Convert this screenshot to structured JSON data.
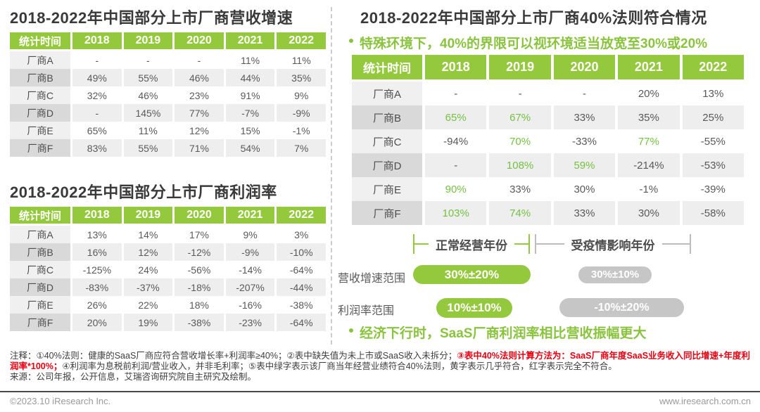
{
  "colors": {
    "brand_green": "#94c83d",
    "green_value_text": "#76c043",
    "gray_pill": "#c6c6c6",
    "red_note": "#e60012"
  },
  "chart_data": [
    {
      "type": "table",
      "title": "2018-2022年中国部分上市厂商营收增速",
      "columns": [
        "统计时间",
        "2018",
        "2019",
        "2020",
        "2021",
        "2022"
      ],
      "rows": [
        [
          "厂商A",
          "-",
          "-",
          "-",
          "11%",
          "11%"
        ],
        [
          "厂商B",
          "49%",
          "55%",
          "46%",
          "44%",
          "35%"
        ],
        [
          "厂商C",
          "32%",
          "46%",
          "23%",
          "91%",
          "9%"
        ],
        [
          "厂商D",
          "-",
          "145%",
          "77%",
          "-7%",
          "-9%"
        ],
        [
          "厂商E",
          "65%",
          "11%",
          "12%",
          "15%",
          "-1%"
        ],
        [
          "厂商F",
          "83%",
          "55%",
          "71%",
          "54%",
          "7%"
        ]
      ]
    },
    {
      "type": "table",
      "title": "2018-2022年中国部分上市厂商利润率",
      "columns": [
        "统计时间",
        "2018",
        "2019",
        "2020",
        "2021",
        "2022"
      ],
      "rows": [
        [
          "厂商A",
          "13%",
          "14%",
          "17%",
          "9%",
          "3%"
        ],
        [
          "厂商B",
          "16%",
          "12%",
          "-12%",
          "-9%",
          "-10%"
        ],
        [
          "厂商C",
          "-125%",
          "24%",
          "-56%",
          "-14%",
          "-64%"
        ],
        [
          "厂商D",
          "-83%",
          "-37%",
          "-18%",
          "-207%",
          "-44%"
        ],
        [
          "厂商E",
          "26%",
          "22%",
          "18%",
          "-16%",
          "-38%"
        ],
        [
          "厂商F",
          "20%",
          "19%",
          "-38%",
          "-23%",
          "-64%"
        ]
      ]
    },
    {
      "type": "table",
      "title": "2018-2022年中国部分上市厂商40%法则符合情况",
      "columns": [
        "统计时间",
        "2018",
        "2019",
        "2020",
        "2021",
        "2022"
      ],
      "rows": [
        [
          "厂商A",
          "-",
          "-",
          "-",
          "20%",
          "13%"
        ],
        [
          "厂商B",
          "65%",
          "67%",
          "33%",
          "35%",
          "25%"
        ],
        [
          "厂商C",
          "-94%",
          "70%",
          "-33%",
          "77%",
          "-55%"
        ],
        [
          "厂商D",
          "-",
          "108%",
          "59%",
          "-214%",
          "-53%"
        ],
        [
          "厂商E",
          "90%",
          "33%",
          "30%",
          "-1%",
          "-39%"
        ],
        [
          "厂商F",
          "103%",
          "74%",
          "33%",
          "30%",
          "-58%"
        ]
      ],
      "green_cells": [
        [
          false,
          false,
          false,
          false,
          false
        ],
        [
          true,
          true,
          false,
          false,
          false
        ],
        [
          false,
          true,
          false,
          true,
          false
        ],
        [
          false,
          true,
          true,
          false,
          false
        ],
        [
          true,
          false,
          false,
          false,
          false
        ],
        [
          true,
          true,
          false,
          false,
          false
        ]
      ],
      "green_cells_meaning": "绿字表示该厂商当年经营业绩符合40%法则"
    }
  ],
  "right_panel": {
    "special_note": "特殊环境下，40%的界限可以视环境适当放宽至30%或20%",
    "brackets": {
      "normal": "正常经营年份",
      "covid": "受疫情影响年份"
    },
    "ranges": {
      "revenue_label": "营收增速范围",
      "revenue_normal": "30%±20%",
      "revenue_covid": "30%±10%",
      "profit_label": "利润率范围",
      "profit_normal": "10%±10%",
      "profit_covid": "-10%±20%"
    },
    "bottom_note": "经济下行时，SaaS厂商利润率相比营收振幅更大"
  },
  "footnotes": {
    "note_part1": "注释：①40%法则：健康的SaaS厂商应符合营收增长率+利润率≥40%；②表中缺失值为未上市或SaaS收入未拆分；",
    "note_part2_red": "③表中40%法则计算方法为：SaaS厂商年度SaaS业务收入同比增速+年度利润率*100%；",
    "note_part3": "④利润率为息税前利润/营业收入，并非毛利率；⑤表中绿字表示该厂商当年经营业绩符合40%法则，黄字表示几乎符合，红字表示完全不符合。",
    "source": "来源：公司年报，公开信息，艾瑞咨询研究院自主研究及绘制。"
  },
  "footer": {
    "left": "©2023.10 iResearch Inc.",
    "right": "www.iresearch.com.cn"
  }
}
